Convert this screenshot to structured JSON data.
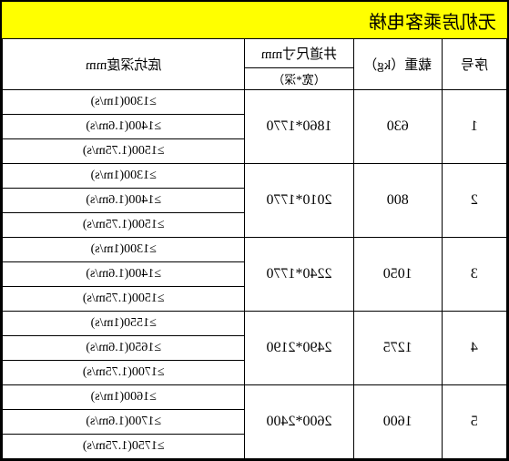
{
  "title": "无机房乘客电梯",
  "headers": {
    "seq": "序号",
    "load": "载重（kg）",
    "shaft": "井道尺寸mm",
    "shaft_sub": "（宽*深）",
    "pit": "底坑深度mm"
  },
  "groups": [
    {
      "seq": "1",
      "load": "630",
      "shaft": "1860*1770",
      "pits": [
        "≥1300(1m/s)",
        "≥1400(1.6m/s)",
        "≥1500(1.75m/s)"
      ]
    },
    {
      "seq": "2",
      "load": "800",
      "shaft": "2010*1770",
      "pits": [
        "≥1300(1m/s)",
        "≥1400(1.6m/s)",
        "≥1500(1.75m/s)"
      ]
    },
    {
      "seq": "3",
      "load": "1050",
      "shaft": "2240*1770",
      "pits": [
        "≥1300(1m/s)",
        "≥1400(1.6m/s)",
        "≥1500(1.75m/s)"
      ]
    },
    {
      "seq": "4",
      "load": "1275",
      "shaft": "2490*2190",
      "pits": [
        "≥1550(1m/s)",
        "≥1650(1.6m/s)",
        "≥1700(1.75m/s)"
      ]
    },
    {
      "seq": "5",
      "load": "1600",
      "shaft": "2600*2400",
      "pits": [
        "≥1600(1m/s)",
        "≥1700(1.6m/s)",
        "≥1750(1.75m/s)"
      ]
    }
  ]
}
